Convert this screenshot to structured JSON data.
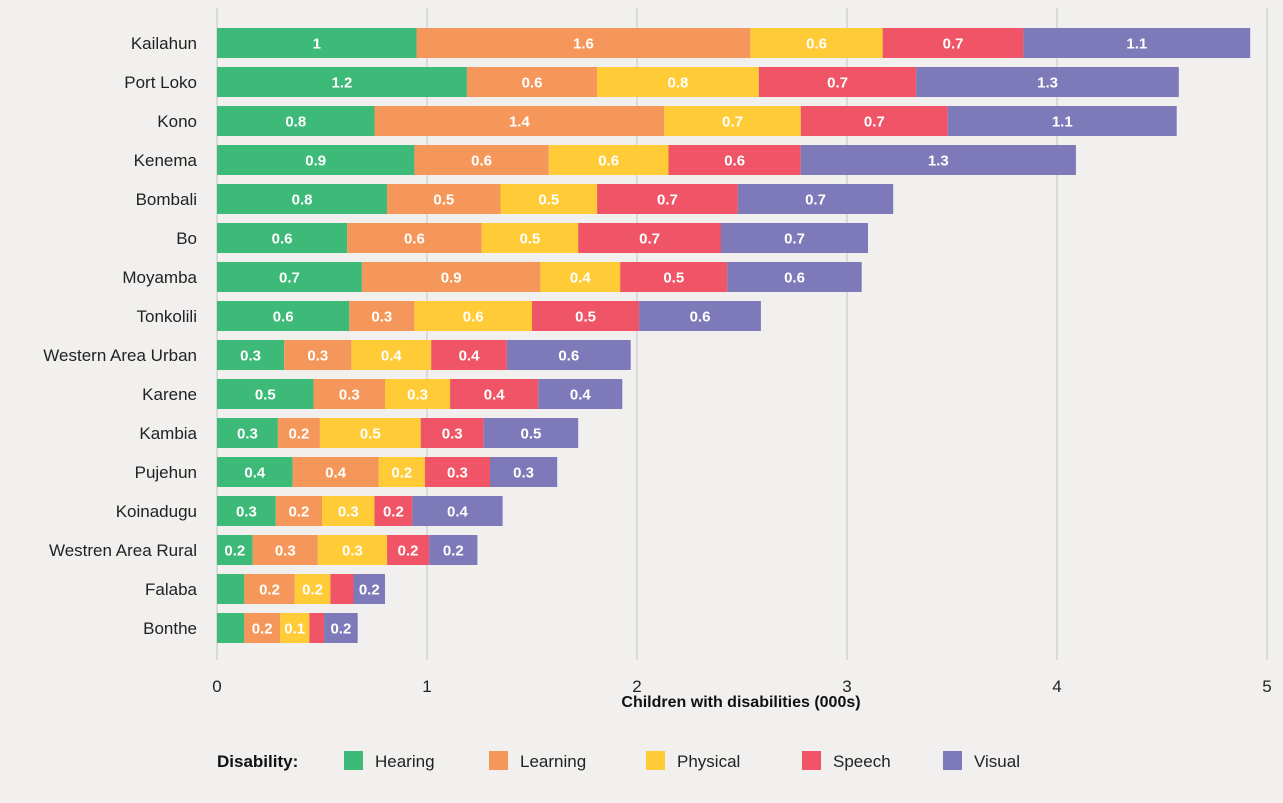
{
  "chart_data": {
    "type": "bar",
    "orientation": "horizontal",
    "stacked": true,
    "xlabel": "Children with disabilities (000s)",
    "xlim": [
      0,
      5
    ],
    "xticks": [
      0,
      1,
      2,
      3,
      4,
      5
    ],
    "grid": true,
    "legend_title": "Disability:",
    "legend_placement": "bottom",
    "categories": [
      "Kailahun",
      "Port Loko",
      "Kono",
      "Kenema",
      "Bombali",
      "Bo",
      "Moyamba",
      "Tonkolili",
      "Western Area Urban",
      "Karene",
      "Kambia",
      "Pujehun",
      "Koinadugu",
      "Westren Area Rural",
      "Falaba",
      "Bonthe"
    ],
    "series": [
      {
        "name": "Hearing",
        "color": "#3dba78",
        "values": [
          0.95,
          1.19,
          0.75,
          0.94,
          0.81,
          0.62,
          0.69,
          0.63,
          0.32,
          0.46,
          0.29,
          0.36,
          0.28,
          0.17,
          0.13,
          0.13
        ],
        "labels": [
          "1",
          "1.2",
          "0.8",
          "0.9",
          "0.8",
          "0.6",
          "0.7",
          "0.6",
          "0.3",
          "0.5",
          "0.3",
          "0.4",
          "0.3",
          "0.2",
          "",
          ""
        ]
      },
      {
        "name": "Learning",
        "color": "#f5975a",
        "values": [
          1.59,
          0.62,
          1.38,
          0.64,
          0.54,
          0.64,
          0.85,
          0.31,
          0.32,
          0.34,
          0.2,
          0.41,
          0.22,
          0.31,
          0.24,
          0.17
        ],
        "labels": [
          "1.6",
          "0.6",
          "1.4",
          "0.6",
          "0.5",
          "0.6",
          "0.9",
          "0.3",
          "0.3",
          "0.3",
          "0.2",
          "0.4",
          "0.2",
          "0.3",
          "0.2",
          "0.2"
        ]
      },
      {
        "name": "Physical",
        "color": "#ffcb36",
        "values": [
          0.63,
          0.77,
          0.65,
          0.57,
          0.46,
          0.46,
          0.38,
          0.56,
          0.38,
          0.31,
          0.48,
          0.22,
          0.25,
          0.33,
          0.17,
          0.14
        ],
        "labels": [
          "0.6",
          "0.8",
          "0.7",
          "0.6",
          "0.5",
          "0.5",
          "0.4",
          "0.6",
          "0.4",
          "0.3",
          "0.5",
          "0.2",
          "0.3",
          "0.3",
          "0.2",
          "0.1"
        ]
      },
      {
        "name": "Speech",
        "color": "#ef5566",
        "values": [
          0.67,
          0.75,
          0.7,
          0.63,
          0.67,
          0.68,
          0.51,
          0.51,
          0.36,
          0.42,
          0.3,
          0.31,
          0.18,
          0.2,
          0.11,
          0.07
        ],
        "labels": [
          "0.7",
          "0.7",
          "0.7",
          "0.6",
          "0.7",
          "0.7",
          "0.5",
          "0.5",
          "0.4",
          "0.4",
          "0.3",
          "0.3",
          "0.2",
          "0.2",
          "",
          ""
        ]
      },
      {
        "name": "Visual",
        "color": "#7e79b8",
        "values": [
          1.08,
          1.25,
          1.09,
          1.31,
          0.74,
          0.7,
          0.64,
          0.58,
          0.59,
          0.4,
          0.45,
          0.32,
          0.43,
          0.23,
          0.15,
          0.16
        ],
        "labels": [
          "1.1",
          "1.3",
          "1.1",
          "1.3",
          "0.7",
          "0.7",
          "0.6",
          "0.6",
          "0.6",
          "0.4",
          "0.5",
          "0.3",
          "0.4",
          "0.2",
          "0.2",
          "0.2"
        ]
      }
    ]
  }
}
